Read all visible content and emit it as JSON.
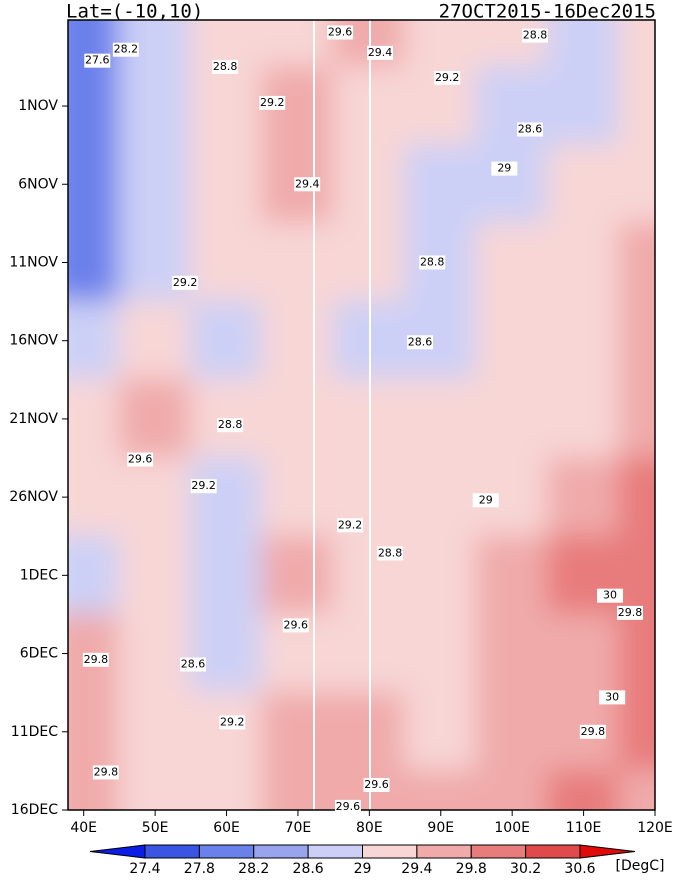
{
  "chart_data": {
    "type": "hovmoller",
    "title": "Lat=(-10,10)",
    "subtitle": "27OCT2015-16Dec2015",
    "unit_label": "[DegC]",
    "xlim": [
      37.8,
      120
    ],
    "ylim": [
      -0.5,
      50
    ],
    "xticks": [
      {
        "value": 40,
        "label": "40E"
      },
      {
        "value": 50,
        "label": "50E"
      },
      {
        "value": 60,
        "label": "60E"
      },
      {
        "value": 70,
        "label": "70E"
      },
      {
        "value": 80,
        "label": "80E"
      },
      {
        "value": 90,
        "label": "90E"
      },
      {
        "value": 100,
        "label": "100E"
      },
      {
        "value": 110,
        "label": "110E"
      },
      {
        "value": 120,
        "label": "120E"
      }
    ],
    "yticks": [
      {
        "value": 5,
        "label": "1NOV"
      },
      {
        "value": 10,
        "label": "6NOV"
      },
      {
        "value": 15,
        "label": "11NOV"
      },
      {
        "value": 20,
        "label": "16NOV"
      },
      {
        "value": 25,
        "label": "21NOV"
      },
      {
        "value": 30,
        "label": "26NOV"
      },
      {
        "value": 35,
        "label": "1DEC"
      },
      {
        "value": 40,
        "label": "6DEC"
      },
      {
        "value": 45,
        "label": "11DEC"
      },
      {
        "value": 50,
        "label": "16DEC"
      }
    ],
    "levels": [
      27.4,
      27.8,
      28.2,
      28.6,
      29,
      29.4,
      29.8,
      30.2,
      30.6
    ],
    "colors": [
      "#0a1ee6",
      "#3a55e4",
      "#6a80ea",
      "#98a4ee",
      "#ccd0f6",
      "#f8d6d6",
      "#f0aaaa",
      "#e87c7c",
      "#e04a4a",
      "#e00a0a"
    ],
    "field_lons": [
      40,
      50,
      60,
      70,
      80,
      90,
      100,
      110,
      120
    ],
    "field_days": [
      0,
      5,
      10,
      15,
      20,
      25,
      30,
      35,
      40,
      45,
      50
    ],
    "field": [
      [
        27.8,
        28.8,
        29.0,
        29.2,
        29.4,
        29.2,
        29.0,
        28.8,
        29.0
      ],
      [
        27.8,
        28.6,
        29.0,
        29.4,
        29.2,
        29.0,
        28.8,
        28.8,
        29.0
      ],
      [
        27.8,
        28.8,
        29.2,
        29.4,
        29.0,
        28.8,
        28.8,
        29.0,
        29.2
      ],
      [
        28.0,
        28.8,
        29.0,
        29.2,
        29.0,
        28.8,
        29.0,
        29.2,
        29.4
      ],
      [
        28.6,
        29.2,
        28.8,
        29.0,
        28.8,
        28.8,
        29.0,
        29.2,
        29.4
      ],
      [
        29.2,
        29.6,
        29.0,
        29.2,
        29.0,
        29.0,
        29.0,
        29.2,
        29.6
      ],
      [
        29.0,
        29.2,
        28.8,
        29.2,
        29.2,
        29.0,
        29.2,
        29.4,
        29.8
      ],
      [
        28.8,
        29.2,
        28.6,
        29.4,
        29.2,
        29.0,
        29.4,
        29.8,
        30.0
      ],
      [
        29.4,
        29.0,
        28.8,
        29.2,
        29.0,
        29.2,
        29.4,
        29.6,
        29.8
      ],
      [
        29.6,
        29.2,
        29.0,
        29.4,
        29.4,
        29.2,
        29.6,
        29.6,
        30.0
      ],
      [
        29.6,
        29.2,
        29.2,
        29.4,
        29.6,
        29.4,
        29.6,
        29.8,
        29.6
      ]
    ],
    "contour_labels": [
      {
        "lon": 45.9,
        "day": 1.4,
        "value": 28.2
      },
      {
        "lon": 41.9,
        "day": 2.1,
        "value": 27.6
      },
      {
        "lon": 59.8,
        "day": 2.5,
        "value": 28.8
      },
      {
        "lon": 66.4,
        "day": 4.8,
        "value": 29.2
      },
      {
        "lon": 75.9,
        "day": 0.3,
        "value": 29.6
      },
      {
        "lon": 81.5,
        "day": 1.6,
        "value": 29.4
      },
      {
        "lon": 90.9,
        "day": 3.2,
        "value": 29.2
      },
      {
        "lon": 103.2,
        "day": 0.5,
        "value": 28.8
      },
      {
        "lon": 102.5,
        "day": 6.5,
        "value": 28.6
      },
      {
        "lon": 71.3,
        "day": 10.0,
        "value": 29.4
      },
      {
        "lon": 98.9,
        "day": 9.0,
        "value": 29
      },
      {
        "lon": 88.8,
        "day": 15.0,
        "value": 28.8
      },
      {
        "lon": 54.2,
        "day": 16.3,
        "value": 29.2
      },
      {
        "lon": 87.1,
        "day": 20.1,
        "value": 28.6
      },
      {
        "lon": 60.5,
        "day": 25.4,
        "value": 28.8
      },
      {
        "lon": 47.9,
        "day": 27.6,
        "value": 29.6
      },
      {
        "lon": 56.8,
        "day": 29.3,
        "value": 29.2
      },
      {
        "lon": 96.3,
        "day": 30.2,
        "value": 29
      },
      {
        "lon": 77.3,
        "day": 31.8,
        "value": 29.2
      },
      {
        "lon": 82.9,
        "day": 33.6,
        "value": 28.8
      },
      {
        "lon": 113.7,
        "day": 36.3,
        "value": 30
      },
      {
        "lon": 116.5,
        "day": 37.4,
        "value": 29.8
      },
      {
        "lon": 69.7,
        "day": 38.2,
        "value": 29.6
      },
      {
        "lon": 55.3,
        "day": 40.7,
        "value": 28.6
      },
      {
        "lon": 41.7,
        "day": 40.4,
        "value": 29.8
      },
      {
        "lon": 114.0,
        "day": 42.8,
        "value": 30
      },
      {
        "lon": 60.8,
        "day": 44.4,
        "value": 29.2
      },
      {
        "lon": 111.3,
        "day": 45.0,
        "value": 29.8
      },
      {
        "lon": 43.1,
        "day": 47.6,
        "value": 29.8
      },
      {
        "lon": 81.0,
        "day": 48.4,
        "value": 29.6
      },
      {
        "lon": 77.0,
        "day": 49.8,
        "value": 29.6
      }
    ]
  }
}
